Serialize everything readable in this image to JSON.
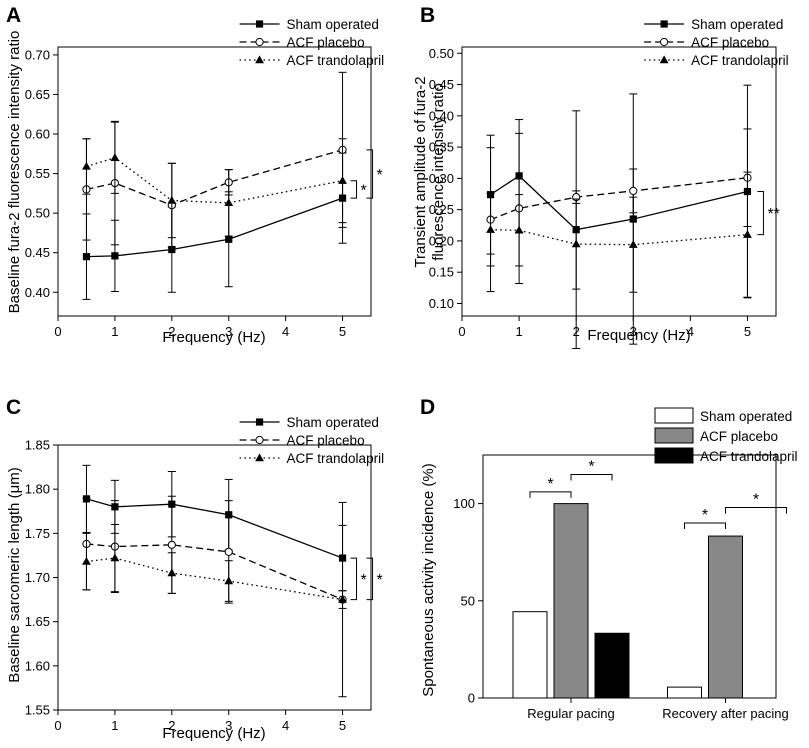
{
  "chart_data": [
    {
      "panel": "A",
      "type": "line",
      "xlabel": "Frequency (Hz)",
      "ylabel": "Baseline fura-2 fluorescence intensity ratio",
      "xlim": [
        0,
        5.5
      ],
      "ylim": [
        0.37,
        0.71
      ],
      "xticks": [
        0,
        1,
        2,
        3,
        4,
        5
      ],
      "yticks": [
        0.4,
        0.45,
        0.5,
        0.55,
        0.6,
        0.65,
        0.7
      ],
      "ytick_decimals": 2,
      "legend_position": "top-right",
      "x": [
        0.5,
        1,
        2,
        3,
        5
      ],
      "series": [
        {
          "name": "Sham operated",
          "style": "solid",
          "marker": "square-filled",
          "values": [
            0.445,
            0.446,
            0.454,
            0.467,
            0.519
          ],
          "error": [
            0.054,
            0.045,
            0.054,
            0.06,
            0.057
          ]
        },
        {
          "name": "ACF placebo",
          "style": "dashed",
          "marker": "circle-open",
          "values": [
            0.53,
            0.538,
            0.51,
            0.539,
            0.58
          ],
          "error": [
            0.064,
            0.078,
            0.053,
            0.016,
            0.098
          ]
        },
        {
          "name": "ACF trandolapril",
          "style": "dotted",
          "marker": "triangle-filled",
          "values": [
            0.559,
            0.57,
            0.516,
            0.513,
            0.541
          ],
          "error": [
            0.035,
            0.045,
            0.047,
            0.042,
            0.053
          ]
        }
      ],
      "annotations": [
        "*",
        "*"
      ]
    },
    {
      "panel": "B",
      "type": "line",
      "xlabel": "Frequency (Hz)",
      "ylabel": "Transient amplitude of fura-2 fluorescence intensity ratio",
      "xlim": [
        0,
        5.5
      ],
      "ylim": [
        0.08,
        0.51
      ],
      "xticks": [
        0,
        1,
        2,
        3,
        4,
        5
      ],
      "yticks": [
        0.1,
        0.15,
        0.2,
        0.25,
        0.3,
        0.35,
        0.4,
        0.45,
        0.5
      ],
      "ytick_decimals": 2,
      "legend_position": "top-right",
      "x": [
        0.5,
        1,
        2,
        3,
        5
      ],
      "series": [
        {
          "name": "Sham operated",
          "style": "solid",
          "marker": "square-filled",
          "values": [
            0.274,
            0.304,
            0.218,
            0.235,
            0.279
          ],
          "error": [
            0.095,
            0.09,
            0.19,
            0.2,
            0.17
          ]
        },
        {
          "name": "ACF placebo",
          "style": "dashed",
          "marker": "circle-open",
          "values": [
            0.234,
            0.252,
            0.27,
            0.28,
            0.301
          ],
          "error": [
            0.115,
            0.12,
            0.01,
            0.035,
            0.078
          ]
        },
        {
          "name": "ACF trandolapril",
          "style": "dotted",
          "marker": "triangle-filled",
          "values": [
            0.218,
            0.217,
            0.195,
            0.194,
            0.21
          ],
          "error": [
            0.058,
            0.057,
            0.072,
            0.076,
            0.1
          ]
        }
      ],
      "annotations": [
        "**"
      ]
    },
    {
      "panel": "C",
      "type": "line",
      "xlabel": "Frequency (Hz)",
      "ylabel": "Baseline sarcomeric length (μm)",
      "xlim": [
        0,
        5.5
      ],
      "ylim": [
        1.55,
        1.85
      ],
      "xticks": [
        0,
        1,
        2,
        3,
        4,
        5
      ],
      "yticks": [
        1.55,
        1.6,
        1.65,
        1.7,
        1.75,
        1.8,
        1.85
      ],
      "ytick_decimals": 2,
      "legend_position": "top-right",
      "x": [
        0.5,
        1,
        2,
        3,
        5
      ],
      "series": [
        {
          "name": "Sham operated",
          "style": "solid",
          "marker": "square-filled",
          "values": [
            1.789,
            1.78,
            1.783,
            1.771,
            1.722
          ],
          "error": [
            0.038,
            0.03,
            0.037,
            0.04,
            0.037
          ]
        },
        {
          "name": "ACF placebo",
          "style": "dashed",
          "marker": "circle-open",
          "values": [
            1.738,
            1.735,
            1.737,
            1.729,
            1.675
          ],
          "error": [
            0.052,
            0.052,
            0.055,
            0.058,
            0.11
          ]
        },
        {
          "name": "ACF trandolapril",
          "style": "dotted",
          "marker": "triangle-filled",
          "values": [
            1.718,
            1.722,
            1.705,
            1.696,
            1.675
          ],
          "error": [
            0.032,
            0.038,
            0.023,
            0.023,
            0.01
          ]
        }
      ],
      "annotations": [
        "*",
        "*"
      ]
    },
    {
      "panel": "D",
      "type": "bar",
      "ylabel": "Spontaneous activity incidence (%)",
      "ylim": [
        0,
        125
      ],
      "yticks": [
        0,
        50,
        100
      ],
      "ytick_decimals": 0,
      "legend_position": "top-right",
      "categories": [
        "Regular pacing",
        "Recovery after pacing"
      ],
      "series": [
        {
          "name": "Sham operated",
          "fill": "#ffffff",
          "values": [
            44.4,
            5.6
          ]
        },
        {
          "name": "ACF placebo",
          "fill": "#888888",
          "values": [
            100,
            83.3
          ]
        },
        {
          "name": "ACF trandolapril",
          "fill": "#000000",
          "values": [
            33.3,
            0
          ]
        }
      ],
      "annotations": [
        "*",
        "*",
        "*",
        "*"
      ]
    }
  ]
}
